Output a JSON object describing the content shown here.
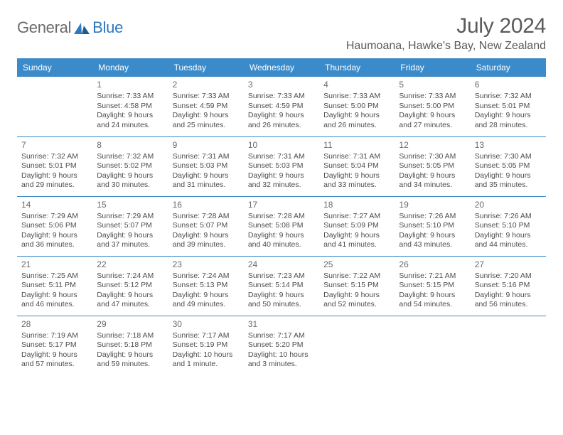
{
  "logo": {
    "text_general": "General",
    "text_blue": "Blue"
  },
  "title": "July 2024",
  "location": "Haumoana, Hawke's Bay, New Zealand",
  "colors": {
    "header_bg": "#3b8bca",
    "header_text": "#ffffff",
    "text": "#4d4d4d",
    "divider": "#3b8bca"
  },
  "day_headers": [
    "Sunday",
    "Monday",
    "Tuesday",
    "Wednesday",
    "Thursday",
    "Friday",
    "Saturday"
  ],
  "weeks": [
    [
      null,
      {
        "n": "1",
        "sr": "Sunrise: 7:33 AM",
        "ss": "Sunset: 4:58 PM",
        "d1": "Daylight: 9 hours",
        "d2": "and 24 minutes."
      },
      {
        "n": "2",
        "sr": "Sunrise: 7:33 AM",
        "ss": "Sunset: 4:59 PM",
        "d1": "Daylight: 9 hours",
        "d2": "and 25 minutes."
      },
      {
        "n": "3",
        "sr": "Sunrise: 7:33 AM",
        "ss": "Sunset: 4:59 PM",
        "d1": "Daylight: 9 hours",
        "d2": "and 26 minutes."
      },
      {
        "n": "4",
        "sr": "Sunrise: 7:33 AM",
        "ss": "Sunset: 5:00 PM",
        "d1": "Daylight: 9 hours",
        "d2": "and 26 minutes."
      },
      {
        "n": "5",
        "sr": "Sunrise: 7:33 AM",
        "ss": "Sunset: 5:00 PM",
        "d1": "Daylight: 9 hours",
        "d2": "and 27 minutes."
      },
      {
        "n": "6",
        "sr": "Sunrise: 7:32 AM",
        "ss": "Sunset: 5:01 PM",
        "d1": "Daylight: 9 hours",
        "d2": "and 28 minutes."
      }
    ],
    [
      {
        "n": "7",
        "sr": "Sunrise: 7:32 AM",
        "ss": "Sunset: 5:01 PM",
        "d1": "Daylight: 9 hours",
        "d2": "and 29 minutes."
      },
      {
        "n": "8",
        "sr": "Sunrise: 7:32 AM",
        "ss": "Sunset: 5:02 PM",
        "d1": "Daylight: 9 hours",
        "d2": "and 30 minutes."
      },
      {
        "n": "9",
        "sr": "Sunrise: 7:31 AM",
        "ss": "Sunset: 5:03 PM",
        "d1": "Daylight: 9 hours",
        "d2": "and 31 minutes."
      },
      {
        "n": "10",
        "sr": "Sunrise: 7:31 AM",
        "ss": "Sunset: 5:03 PM",
        "d1": "Daylight: 9 hours",
        "d2": "and 32 minutes."
      },
      {
        "n": "11",
        "sr": "Sunrise: 7:31 AM",
        "ss": "Sunset: 5:04 PM",
        "d1": "Daylight: 9 hours",
        "d2": "and 33 minutes."
      },
      {
        "n": "12",
        "sr": "Sunrise: 7:30 AM",
        "ss": "Sunset: 5:05 PM",
        "d1": "Daylight: 9 hours",
        "d2": "and 34 minutes."
      },
      {
        "n": "13",
        "sr": "Sunrise: 7:30 AM",
        "ss": "Sunset: 5:05 PM",
        "d1": "Daylight: 9 hours",
        "d2": "and 35 minutes."
      }
    ],
    [
      {
        "n": "14",
        "sr": "Sunrise: 7:29 AM",
        "ss": "Sunset: 5:06 PM",
        "d1": "Daylight: 9 hours",
        "d2": "and 36 minutes."
      },
      {
        "n": "15",
        "sr": "Sunrise: 7:29 AM",
        "ss": "Sunset: 5:07 PM",
        "d1": "Daylight: 9 hours",
        "d2": "and 37 minutes."
      },
      {
        "n": "16",
        "sr": "Sunrise: 7:28 AM",
        "ss": "Sunset: 5:07 PM",
        "d1": "Daylight: 9 hours",
        "d2": "and 39 minutes."
      },
      {
        "n": "17",
        "sr": "Sunrise: 7:28 AM",
        "ss": "Sunset: 5:08 PM",
        "d1": "Daylight: 9 hours",
        "d2": "and 40 minutes."
      },
      {
        "n": "18",
        "sr": "Sunrise: 7:27 AM",
        "ss": "Sunset: 5:09 PM",
        "d1": "Daylight: 9 hours",
        "d2": "and 41 minutes."
      },
      {
        "n": "19",
        "sr": "Sunrise: 7:26 AM",
        "ss": "Sunset: 5:10 PM",
        "d1": "Daylight: 9 hours",
        "d2": "and 43 minutes."
      },
      {
        "n": "20",
        "sr": "Sunrise: 7:26 AM",
        "ss": "Sunset: 5:10 PM",
        "d1": "Daylight: 9 hours",
        "d2": "and 44 minutes."
      }
    ],
    [
      {
        "n": "21",
        "sr": "Sunrise: 7:25 AM",
        "ss": "Sunset: 5:11 PM",
        "d1": "Daylight: 9 hours",
        "d2": "and 46 minutes."
      },
      {
        "n": "22",
        "sr": "Sunrise: 7:24 AM",
        "ss": "Sunset: 5:12 PM",
        "d1": "Daylight: 9 hours",
        "d2": "and 47 minutes."
      },
      {
        "n": "23",
        "sr": "Sunrise: 7:24 AM",
        "ss": "Sunset: 5:13 PM",
        "d1": "Daylight: 9 hours",
        "d2": "and 49 minutes."
      },
      {
        "n": "24",
        "sr": "Sunrise: 7:23 AM",
        "ss": "Sunset: 5:14 PM",
        "d1": "Daylight: 9 hours",
        "d2": "and 50 minutes."
      },
      {
        "n": "25",
        "sr": "Sunrise: 7:22 AM",
        "ss": "Sunset: 5:15 PM",
        "d1": "Daylight: 9 hours",
        "d2": "and 52 minutes."
      },
      {
        "n": "26",
        "sr": "Sunrise: 7:21 AM",
        "ss": "Sunset: 5:15 PM",
        "d1": "Daylight: 9 hours",
        "d2": "and 54 minutes."
      },
      {
        "n": "27",
        "sr": "Sunrise: 7:20 AM",
        "ss": "Sunset: 5:16 PM",
        "d1": "Daylight: 9 hours",
        "d2": "and 56 minutes."
      }
    ],
    [
      {
        "n": "28",
        "sr": "Sunrise: 7:19 AM",
        "ss": "Sunset: 5:17 PM",
        "d1": "Daylight: 9 hours",
        "d2": "and 57 minutes."
      },
      {
        "n": "29",
        "sr": "Sunrise: 7:18 AM",
        "ss": "Sunset: 5:18 PM",
        "d1": "Daylight: 9 hours",
        "d2": "and 59 minutes."
      },
      {
        "n": "30",
        "sr": "Sunrise: 7:17 AM",
        "ss": "Sunset: 5:19 PM",
        "d1": "Daylight: 10 hours",
        "d2": "and 1 minute."
      },
      {
        "n": "31",
        "sr": "Sunrise: 7:17 AM",
        "ss": "Sunset: 5:20 PM",
        "d1": "Daylight: 10 hours",
        "d2": "and 3 minutes."
      },
      null,
      null,
      null
    ]
  ]
}
